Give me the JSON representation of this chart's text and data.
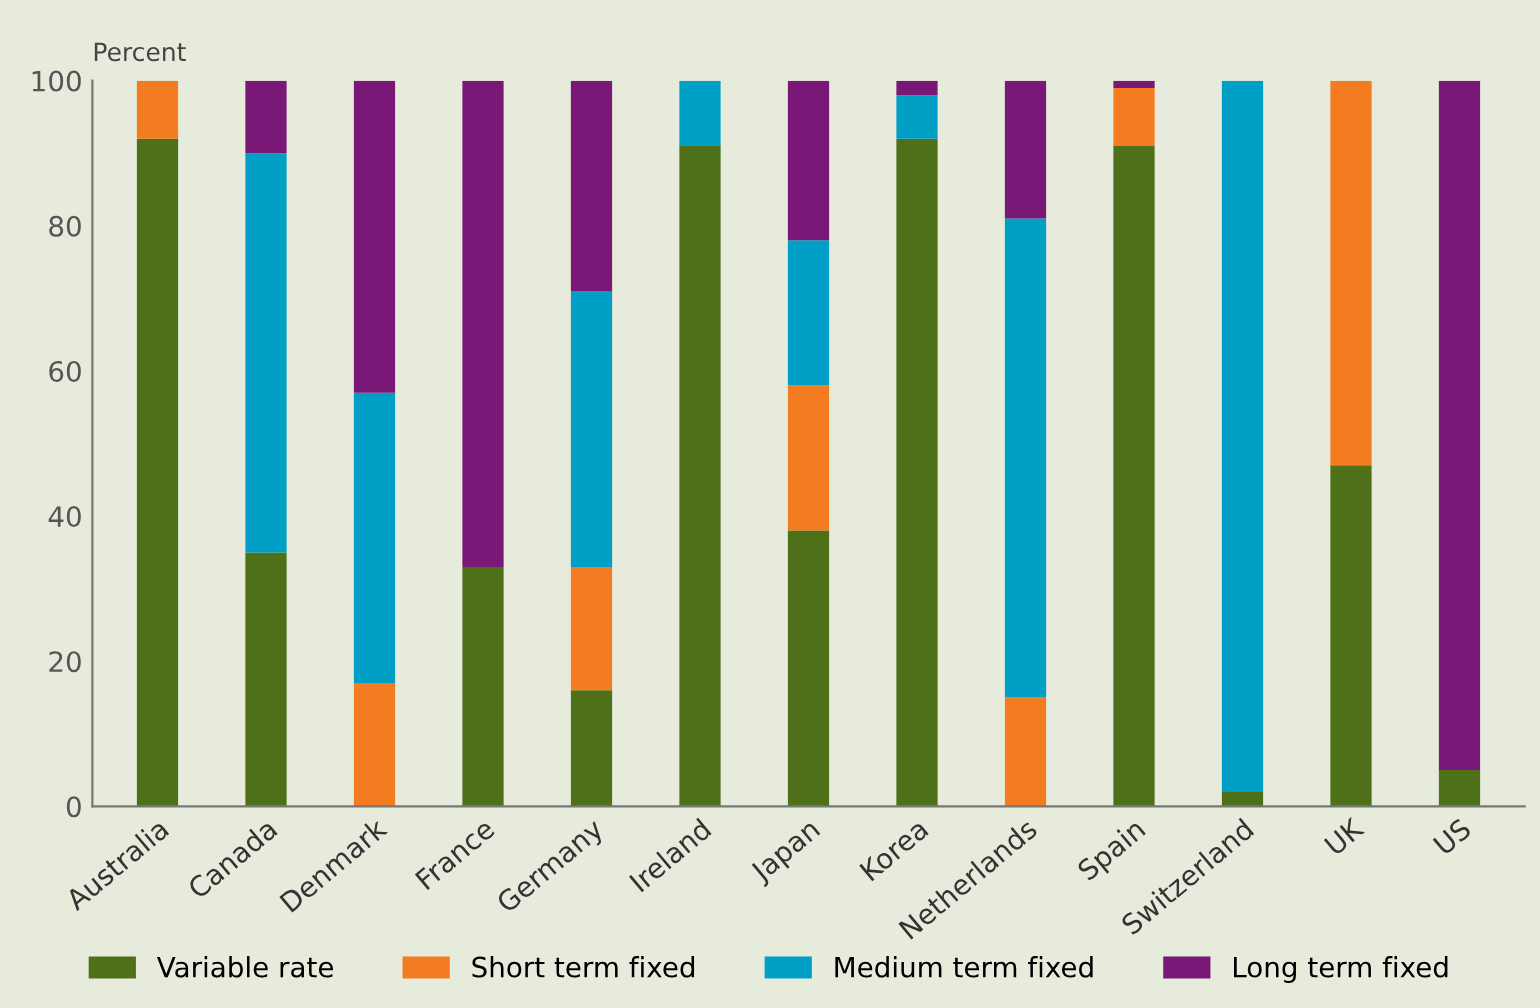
{
  "chart_data": {
    "type": "bar",
    "stacked": true,
    "ylabel": "Percent",
    "categories": [
      "Australia",
      "Canada",
      "Denmark",
      "France",
      "Germany",
      "Ireland",
      "Japan",
      "Korea",
      "Netherlands",
      "Spain",
      "Switzerland",
      "UK",
      "US"
    ],
    "series": [
      {
        "name": "Variable rate",
        "color": "#4e7019",
        "values": [
          92,
          35,
          0,
          33,
          16,
          91,
          38,
          92,
          0,
          91,
          2,
          47,
          5
        ]
      },
      {
        "name": "Short term fixed",
        "color": "#f47c20",
        "values": [
          8,
          0,
          17,
          0,
          17,
          0,
          20,
          0,
          15,
          8,
          0,
          53,
          0
        ]
      },
      {
        "name": "Medium term fixed",
        "color": "#00a0c6",
        "values": [
          0,
          55,
          40,
          0,
          38,
          9,
          20,
          6,
          66,
          0,
          98,
          0,
          0
        ]
      },
      {
        "name": "Long term fixed",
        "color": "#7a1878",
        "values": [
          0,
          10,
          43,
          67,
          29,
          0,
          22,
          2,
          19,
          1,
          0,
          0,
          95
        ]
      }
    ],
    "ylim": [
      0,
      100
    ],
    "yticks": [
      0,
      20,
      40,
      60,
      80,
      100
    ],
    "grid": false,
    "legend": "bottom"
  }
}
